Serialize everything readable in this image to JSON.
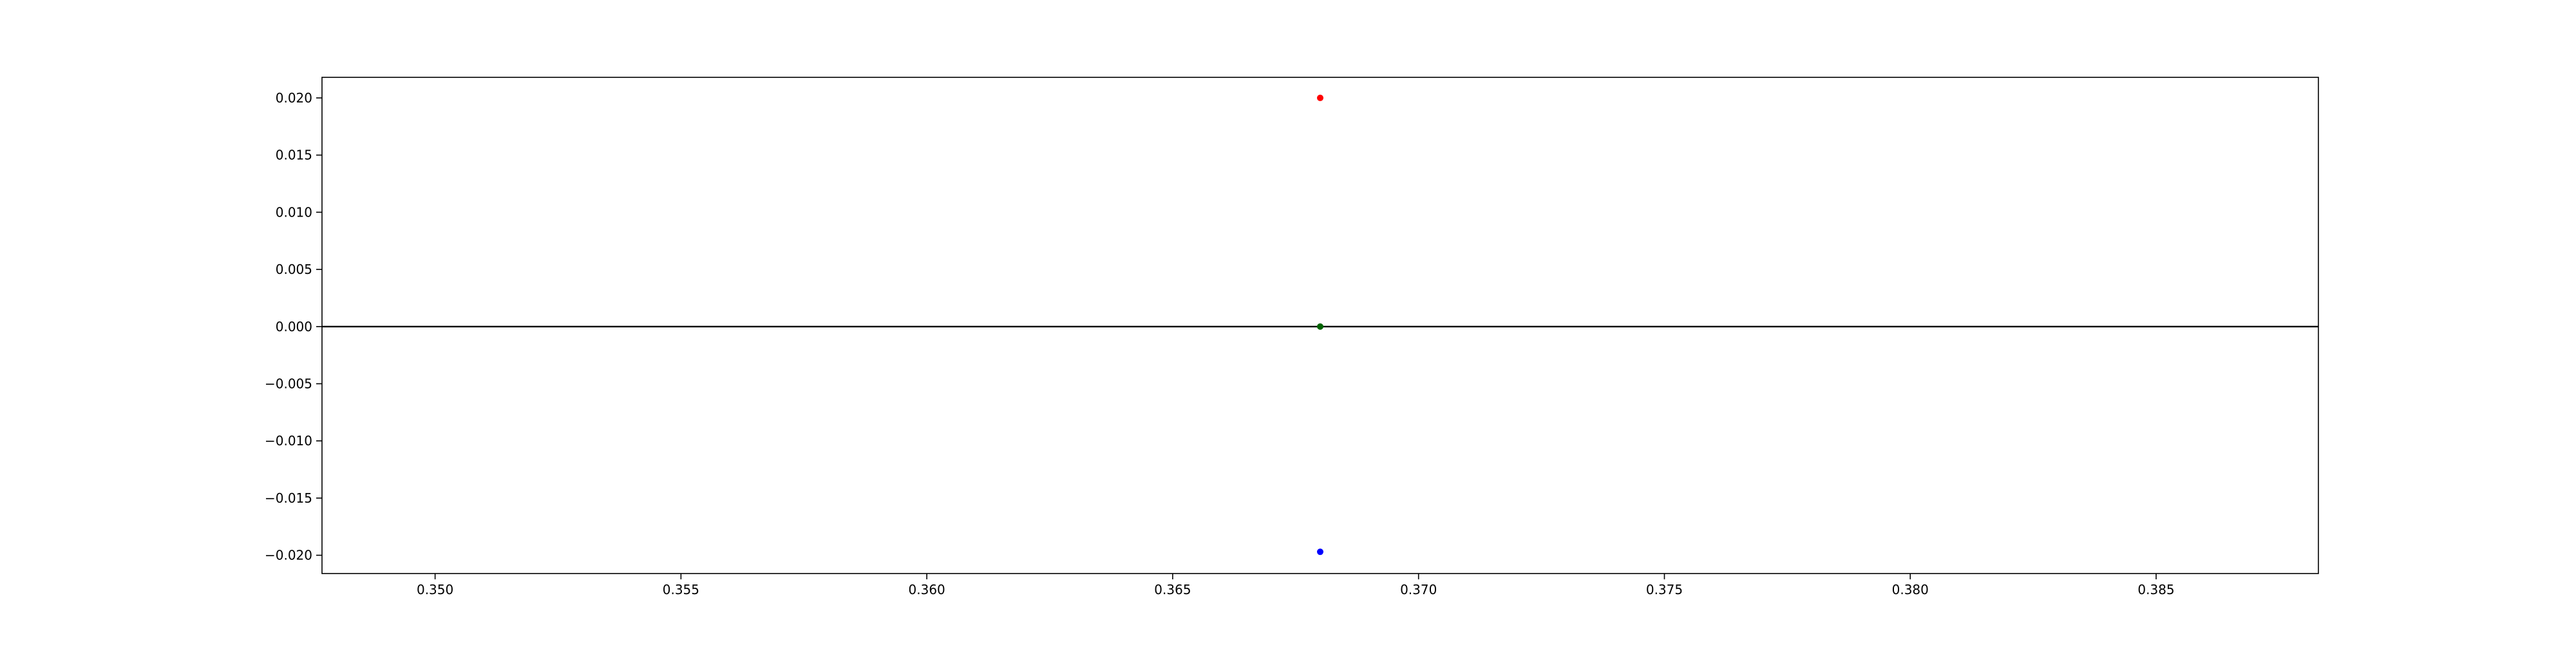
{
  "chart_data": {
    "type": "scatter",
    "title": "",
    "xlabel": "",
    "ylabel": "",
    "xlim": [
      0.3477,
      0.3883
    ],
    "ylim": [
      -0.0216,
      0.0218
    ],
    "xticks": [
      0.35,
      0.355,
      0.36,
      0.365,
      0.37,
      0.375,
      0.38,
      0.385
    ],
    "xtick_labels": [
      "0.350",
      "0.355",
      "0.360",
      "0.365",
      "0.370",
      "0.375",
      "0.380",
      "0.385"
    ],
    "yticks": [
      0.02,
      0.015,
      0.01,
      0.005,
      0.0,
      -0.005,
      -0.01,
      -0.015,
      -0.02
    ],
    "ytick_labels": [
      "0.020",
      "0.015",
      "0.010",
      "0.005",
      "0.000",
      "−0.005",
      "−0.010",
      "−0.015",
      "−0.020"
    ],
    "grid": false,
    "reference_lines": [
      {
        "orientation": "horizontal",
        "y": 0.0,
        "color": "#000000"
      }
    ],
    "points": [
      {
        "x": 0.368,
        "y": 0.02,
        "color": "#ff0000"
      },
      {
        "x": 0.368,
        "y": 0.0,
        "color": "#006400"
      },
      {
        "x": 0.368,
        "y": -0.0197,
        "color": "#0000ff"
      }
    ]
  }
}
